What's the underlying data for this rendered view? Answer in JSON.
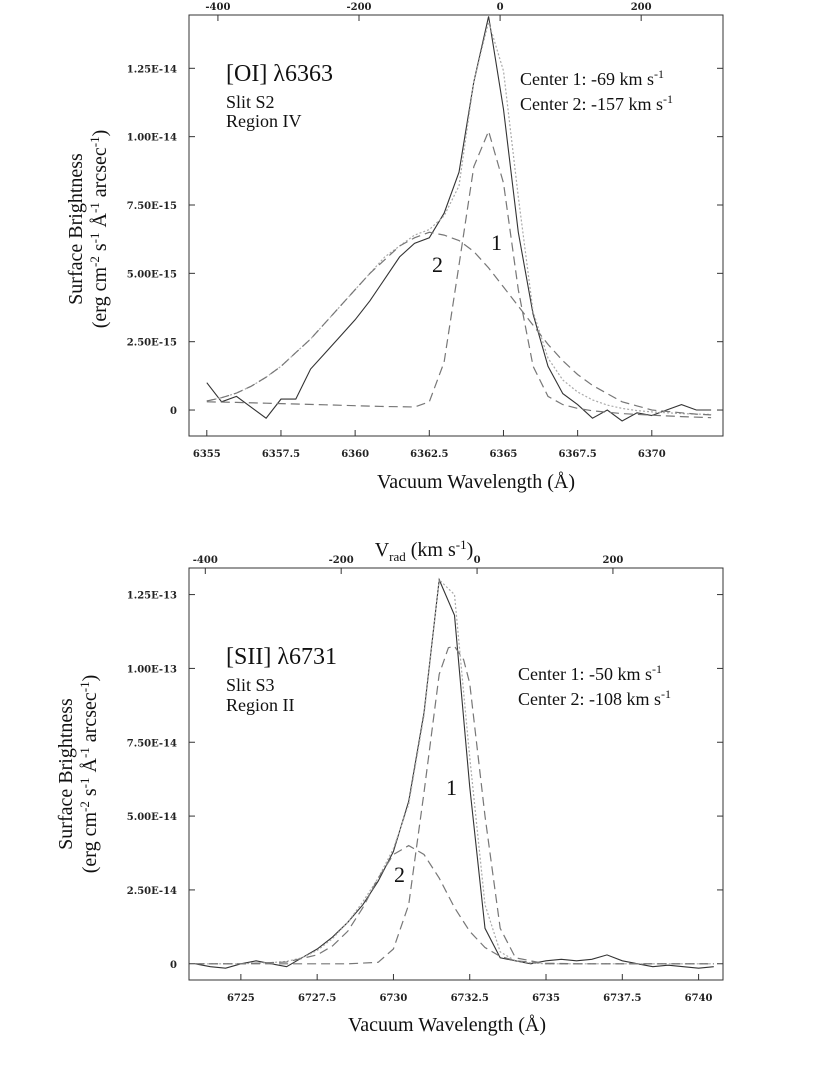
{
  "chart_data": [
    {
      "type": "line",
      "title": "",
      "xlabel": "Vacuum Wavelength (Å)",
      "ylabel": [
        "Surface Brightness",
        "(erg cm-2 s-1 Å-1 arcsec-1)"
      ],
      "top_axis_label": "",
      "xlim": [
        6354.4,
        6372.4
      ],
      "ylim": [
        -9.5e-16,
        1.445e-14
      ],
      "vlim": [
        -441,
        316
      ],
      "x_ticks": [
        6355,
        6357.5,
        6360,
        6362.5,
        6365,
        6367.5,
        6370
      ],
      "x_tick_labels": [
        "6355",
        "6357.5",
        "6360",
        "6362.5",
        "6365",
        "6367.5",
        "6370"
      ],
      "y_ticks": [
        0,
        2.5e-15,
        5e-15,
        7.5e-15,
        1e-14,
        1.25e-14
      ],
      "y_tick_labels": [
        "0",
        "2.50E-15",
        "5.00E-15",
        "7.50E-15",
        "1.00E-14",
        "1.25E-14"
      ],
      "v_ticks": [
        -400,
        -200,
        0,
        200
      ],
      "v_tick_labels": [
        "-400",
        "-200",
        "0",
        "200"
      ],
      "annotations": {
        "line_name": "[OI] λ6363",
        "slit": "Slit S2",
        "region": "Region IV",
        "center1": "Center 1: -69 km s-1",
        "center2": "Center 2: -157 km s-1",
        "comp1_label": "1",
        "comp2_label": "2"
      },
      "series": [
        {
          "style": "observed",
          "color": "#333333",
          "x": [
            6355,
            6355.5,
            6356,
            6356.5,
            6357,
            6357.5,
            6358,
            6358.5,
            6359,
            6359.5,
            6360,
            6360.5,
            6361,
            6361.5,
            6362,
            6362.5,
            6363,
            6363.5,
            6364,
            6364.5,
            6365,
            6365.5,
            6366,
            6366.5,
            6367,
            6367.5,
            6368,
            6368.5,
            6369,
            6369.5,
            6370,
            6370.5,
            6371,
            6371.5,
            6372
          ],
          "y": [
            1e-15,
            3e-16,
            5e-16,
            1e-16,
            -3e-16,
            4e-16,
            4e-16,
            1.5e-15,
            2.1e-15,
            2.7e-15,
            3.3e-15,
            4e-15,
            4.8e-15,
            5.6e-15,
            6.1e-15,
            6.3e-15,
            7.2e-15,
            8.7e-15,
            1.2e-14,
            1.44e-14,
            1.1e-14,
            6.5e-15,
            3.5e-15,
            1.6e-15,
            6e-16,
            2e-16,
            -3e-16,
            0,
            -4e-16,
            -1e-16,
            -2e-16,
            0,
            2e-16,
            0,
            0
          ]
        },
        {
          "style": "fit",
          "color": "#aaaaaa",
          "x": [
            6355,
            6355.5,
            6356,
            6356.5,
            6357,
            6357.5,
            6358,
            6358.5,
            6359,
            6359.5,
            6360,
            6360.5,
            6361,
            6361.5,
            6362,
            6362.5,
            6363,
            6363.5,
            6364,
            6364.5,
            6365,
            6365.5,
            6366,
            6366.5,
            6367,
            6367.5,
            6368,
            6368.5,
            6369,
            6369.5,
            6370,
            6370.5,
            6371,
            6371.5,
            6372
          ],
          "y": [
            3.3e-16,
            4.5e-16,
            6.2e-16,
            8.7e-16,
            1.2e-15,
            1.6e-15,
            2.1e-15,
            2.6e-15,
            3.2e-15,
            3.8e-15,
            4.4e-15,
            5e-15,
            5.6e-15,
            6e-15,
            6.4e-15,
            6.6e-15,
            7.1e-15,
            8.2e-15,
            1.2e-14,
            1.42e-14,
            1.24e-14,
            7.8e-15,
            3.6e-15,
            1.9e-15,
            1.1e-15,
            6.6e-16,
            3.7e-16,
            1.8e-16,
            6e-17,
            -2e-17,
            -7e-17,
            -1e-16,
            -1.3e-16,
            -1.5e-16,
            -1.6e-16
          ]
        },
        {
          "style": "component",
          "name": "1",
          "color": "#777777",
          "x": [
            6355,
            6356,
            6357,
            6358,
            6359,
            6360,
            6361,
            6361.5,
            6362,
            6362.5,
            6363,
            6363.5,
            6364,
            6364.5,
            6365,
            6365.5,
            6366,
            6366.5,
            6367,
            6367.5,
            6368,
            6369,
            6370,
            6371,
            6372
          ],
          "y": [
            3e-16,
            2.8e-16,
            2.5e-16,
            2.2e-16,
            1.9e-16,
            1.6e-16,
            1.3e-16,
            1.2e-16,
            1.1e-16,
            3e-16,
            1.75e-15,
            5.3e-15,
            8.9e-15,
            1.02e-14,
            8.3e-15,
            4.4e-15,
            1.6e-15,
            5e-16,
            2e-16,
            6e-17,
            -3e-17,
            -1.3e-16,
            -1.9e-16,
            -2.4e-16,
            -2.8e-16
          ]
        },
        {
          "style": "component",
          "name": "2",
          "color": "#777777",
          "x": [
            6355,
            6355.5,
            6356,
            6356.5,
            6357,
            6357.5,
            6358,
            6358.5,
            6359,
            6359.5,
            6360,
            6360.5,
            6361,
            6361.5,
            6362,
            6362.5,
            6363,
            6363.5,
            6364,
            6364.5,
            6365,
            6365.5,
            6366,
            6366.5,
            6367,
            6367.5,
            6368,
            6368.5,
            6369,
            6369.5,
            6370,
            6370.5,
            6371,
            6371.5,
            6372
          ],
          "y": [
            3.3e-16,
            4.5e-16,
            6.2e-16,
            8.7e-16,
            1.2e-15,
            1.6e-15,
            2.1e-15,
            2.6e-15,
            3.2e-15,
            3.8e-15,
            4.4e-15,
            5e-15,
            5.5e-15,
            6e-15,
            6.3e-15,
            6.5e-15,
            6.4e-15,
            6.2e-15,
            5.8e-15,
            5.2e-15,
            4.5e-15,
            3.8e-15,
            3.1e-15,
            2.4e-15,
            1.8e-15,
            1.3e-15,
            9e-16,
            6e-16,
            3e-16,
            1.5e-16,
            0,
            -5e-17,
            -1e-16,
            -1.5e-16,
            -1.8e-16
          ]
        }
      ]
    },
    {
      "type": "line",
      "title": "",
      "xlabel": "Vacuum Wavelength (Å)",
      "ylabel": [
        "Surface Brightness",
        "(erg cm-2 s-1 Å-1 arcsec-1)"
      ],
      "top_axis_label": "Vrad (km s-1)",
      "xlim": [
        6723.3,
        6740.8
      ],
      "ylim": [
        -5.5e-15,
        1.34e-13
      ],
      "vlim": [
        -424,
        362
      ],
      "x_ticks": [
        6725,
        6727.5,
        6730,
        6732.5,
        6735,
        6737.5,
        6740
      ],
      "x_tick_labels": [
        "6725",
        "6727.5",
        "6730",
        "6732.5",
        "6735",
        "6737.5",
        "6740"
      ],
      "y_ticks": [
        0,
        2.5e-14,
        5e-14,
        7.5e-14,
        1e-13,
        1.25e-13
      ],
      "y_tick_labels": [
        "0",
        "2.50E-14",
        "5.00E-14",
        "7.50E-14",
        "1.00E-13",
        "1.25E-13"
      ],
      "v_ticks": [
        -400,
        -200,
        0,
        200
      ],
      "v_tick_labels": [
        "-400",
        "-200",
        "0",
        "200"
      ],
      "annotations": {
        "line_name": "[SII] λ6731",
        "slit": "Slit S3",
        "region": "Region II",
        "center1": "Center 1: -50 km s-1",
        "center2": "Center 2: -108 km s-1",
        "comp1_label": "1",
        "comp2_label": "2"
      },
      "series": [
        {
          "style": "observed",
          "color": "#333333",
          "x": [
            6723.5,
            6724,
            6724.5,
            6725,
            6725.5,
            6726,
            6726.5,
            6727,
            6727.5,
            6728,
            6728.5,
            6729,
            6729.5,
            6730,
            6730.5,
            6731,
            6731.5,
            6732,
            6732.5,
            6733,
            6733.5,
            6734,
            6734.5,
            6735,
            6735.5,
            6736,
            6736.5,
            6737,
            6737.5,
            6738,
            6738.5,
            6739,
            6739.5,
            6740,
            6740.5
          ],
          "y": [
            0,
            -1e-15,
            -1.5e-15,
            0,
            1e-15,
            0,
            -1e-15,
            2e-15,
            5e-15,
            9e-15,
            1.4e-14,
            2e-14,
            2.8e-14,
            3.8e-14,
            5.5e-14,
            8.5e-14,
            1.3e-13,
            1.18e-13,
            6e-14,
            1.2e-14,
            2e-15,
            1e-15,
            0,
            1e-15,
            1.5e-15,
            1e-15,
            1.5e-15,
            3e-15,
            1e-15,
            0,
            -1e-15,
            -5e-16,
            -1e-15,
            -1.5e-15,
            -1e-15
          ]
        },
        {
          "style": "fit",
          "color": "#aaaaaa",
          "x": [
            6723.5,
            6724,
            6724.5,
            6725,
            6725.5,
            6726,
            6726.5,
            6727,
            6727.5,
            6728,
            6728.5,
            6729,
            6729.5,
            6730,
            6730.5,
            6731,
            6731.5,
            6732,
            6732.5,
            6733,
            6733.5,
            6734,
            6734.5,
            6735,
            6735.5,
            6736,
            6736.5,
            6737,
            6737.5,
            6738,
            6738.5,
            6739,
            6739.5,
            6740,
            6740.5
          ],
          "y": [
            0,
            0,
            0,
            0,
            2e-16,
            4e-16,
            8e-16,
            2e-15,
            4.5e-15,
            8.5e-15,
            1.4e-14,
            2.1e-14,
            2.9e-14,
            3.9e-14,
            5.4e-14,
            8.4e-14,
            1.3e-13,
            1.25e-13,
            7e-14,
            2e-14,
            4e-15,
            1e-15,
            3e-16,
            0,
            0,
            0,
            0,
            0,
            0,
            0,
            0,
            0,
            0,
            0,
            0
          ]
        },
        {
          "style": "component",
          "name": "1",
          "color": "#777777",
          "x": [
            6723.5,
            6725,
            6727,
            6728.5,
            6729.5,
            6730,
            6730.5,
            6731,
            6731.5,
            6731.8,
            6732,
            6732.3,
            6732.5,
            6733,
            6733.5,
            6734,
            6735,
            6737,
            6740.5
          ],
          "y": [
            0,
            0,
            0,
            0,
            5e-16,
            5e-15,
            2e-14,
            5.8e-14,
            9.8e-14,
            1.07e-13,
            1.075e-13,
            1.03e-13,
            9.5e-14,
            5e-14,
            1.2e-14,
            2e-15,
            0,
            0,
            0
          ]
        },
        {
          "style": "component",
          "name": "2",
          "color": "#777777",
          "x": [
            6723.5,
            6725,
            6726.5,
            6727.5,
            6728,
            6728.5,
            6729,
            6729.5,
            6730,
            6730.5,
            6731,
            6731.5,
            6732,
            6732.5,
            6733,
            6733.5,
            6734,
            6735,
            6736,
            6737,
            6740.5
          ],
          "y": [
            0,
            0,
            6e-16,
            3e-15,
            6e-15,
            1.1e-14,
            1.9e-14,
            2.9e-14,
            3.7e-14,
            4e-14,
            3.7e-14,
            2.9e-14,
            1.9e-14,
            1.1e-14,
            5.5e-15,
            2.5e-15,
            1e-15,
            2e-16,
            0,
            0,
            0
          ]
        }
      ]
    }
  ]
}
